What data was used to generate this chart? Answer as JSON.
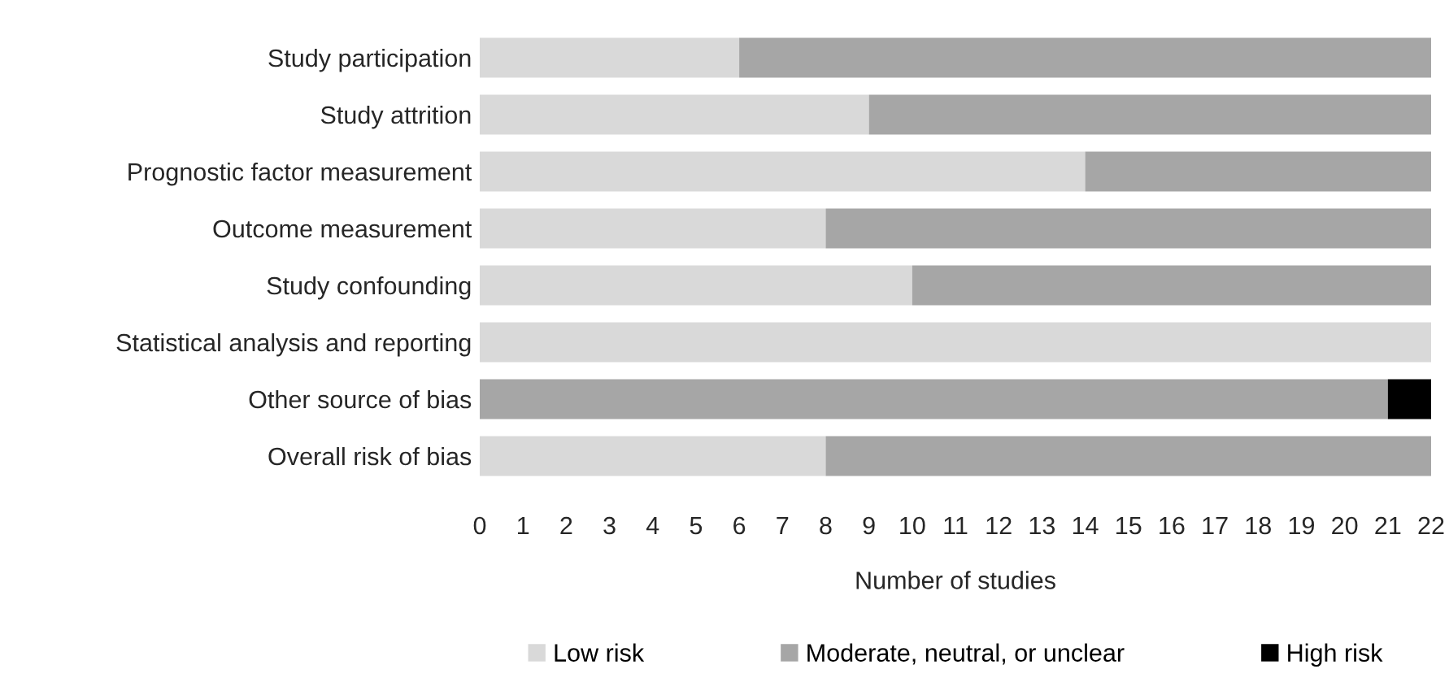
{
  "chart_data": {
    "type": "bar",
    "orientation": "horizontal",
    "stacked": true,
    "categories": [
      "Study participation",
      "Study attrition",
      "Prognostic factor measurement",
      "Outcome measurement",
      "Study confounding",
      "Statistical analysis and reporting",
      "Other source of bias",
      "Overall risk of bias"
    ],
    "series": [
      {
        "name": "Low risk",
        "color": "#d9d9d9",
        "values": [
          6,
          9,
          14,
          8,
          10,
          22,
          0,
          8
        ]
      },
      {
        "name": "Moderate, neutral, or unclear",
        "color": "#a6a6a6",
        "values": [
          16,
          13,
          8,
          14,
          12,
          0,
          21,
          14
        ]
      },
      {
        "name": "High risk",
        "color": "#000000",
        "values": [
          0,
          0,
          0,
          0,
          0,
          0,
          1,
          0
        ]
      }
    ],
    "xlabel": "Number of studies",
    "xlim": [
      0,
      22
    ],
    "xticks": [
      0,
      1,
      2,
      3,
      4,
      5,
      6,
      7,
      8,
      9,
      10,
      11,
      12,
      13,
      14,
      15,
      16,
      17,
      18,
      19,
      20,
      21,
      22
    ],
    "grid": false,
    "legend": "bottom"
  }
}
